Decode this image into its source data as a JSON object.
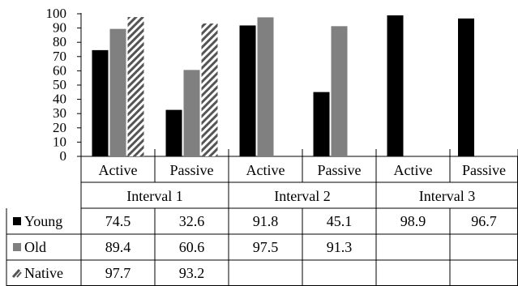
{
  "chart_data": {
    "type": "bar",
    "ylim": [
      0,
      100
    ],
    "yticks": [
      "0",
      "10",
      "20",
      "30",
      "40",
      "50",
      "60",
      "70",
      "80",
      "90",
      "100"
    ],
    "groups": [
      {
        "label": "Interval 1",
        "categories": [
          "Active",
          "Passive"
        ]
      },
      {
        "label": "Interval 2",
        "categories": [
          "Active",
          "Passive"
        ]
      },
      {
        "label": "Interval 3",
        "categories": [
          "Active",
          "Passive"
        ]
      }
    ],
    "series": [
      {
        "name": "Young",
        "pattern": "solid-black",
        "color": "#000000",
        "values": [
          74.5,
          32.6,
          91.8,
          45.1,
          98.9,
          96.7
        ],
        "labels": [
          "74.5",
          "32.6",
          "91.8",
          "45.1",
          "98.9",
          "96.7"
        ]
      },
      {
        "name": "Old",
        "pattern": "solid-gray",
        "color": "#808080",
        "values": [
          89.4,
          60.6,
          97.5,
          91.3,
          null,
          null
        ],
        "labels": [
          "89.4",
          "60.6",
          "97.5",
          "91.3",
          "",
          ""
        ]
      },
      {
        "name": "Native",
        "pattern": "diagonal-hatch",
        "color": "#555555",
        "values": [
          97.7,
          93.2,
          null,
          null,
          null,
          null
        ],
        "labels": [
          "97.7",
          "93.2",
          "",
          "",
          "",
          ""
        ]
      }
    ],
    "grid": false,
    "legend": "data-table"
  }
}
